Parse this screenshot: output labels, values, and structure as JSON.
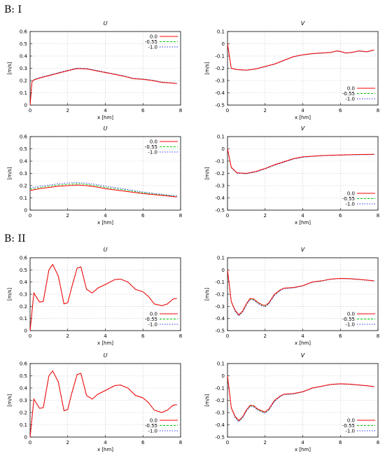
{
  "sections": [
    {
      "label": "B: I"
    },
    {
      "label": "B: II"
    }
  ],
  "legend_labels": [
    "0.0",
    "-0.55",
    "-1.0"
  ],
  "colors": {
    "s0": "#ff0000",
    "s1": "#00cc00",
    "s2": "#3333ff",
    "grid": "#b0b0b0",
    "axis": "#000000"
  },
  "chart_data": [
    {
      "type": "line",
      "section": "B: I",
      "title": "U",
      "xlabel": "x [hm]",
      "ylabel": "[m/s]",
      "xlim": [
        0,
        8
      ],
      "ylim": [
        0,
        0.6
      ],
      "xticks": [
        "0",
        "2",
        "4",
        "6",
        "8"
      ],
      "yticks": [
        "0",
        "0.1",
        "0.2",
        "0.3",
        "0.4",
        "0.5",
        "0.6"
      ],
      "grid": true,
      "legend": "top-right",
      "x": [
        0,
        0.1,
        0.2,
        0.5,
        1,
        1.5,
        2,
        2.5,
        3,
        3.5,
        4,
        4.5,
        5,
        5.5,
        6,
        6.5,
        7,
        7.5,
        7.8
      ],
      "series": [
        {
          "name": "0.0",
          "values": [
            0,
            0.19,
            0.205,
            0.22,
            0.24,
            0.26,
            0.28,
            0.298,
            0.295,
            0.28,
            0.265,
            0.25,
            0.235,
            0.215,
            0.21,
            0.2,
            0.185,
            0.18,
            0.175
          ]
        },
        {
          "name": "-0.55",
          "values": [
            0,
            0.19,
            0.207,
            0.222,
            0.242,
            0.262,
            0.282,
            0.3,
            0.297,
            0.282,
            0.267,
            0.252,
            0.237,
            0.217,
            0.212,
            0.202,
            0.187,
            0.181,
            0.176
          ]
        },
        {
          "name": "-1.0",
          "values": [
            0,
            0.19,
            0.208,
            0.224,
            0.244,
            0.264,
            0.284,
            0.302,
            0.299,
            0.284,
            0.268,
            0.253,
            0.238,
            0.218,
            0.213,
            0.203,
            0.188,
            0.182,
            0.177
          ]
        }
      ]
    },
    {
      "type": "line",
      "section": "B: I",
      "title": "V",
      "xlabel": "x [hm]",
      "ylabel": "[m/s]",
      "xlim": [
        0,
        8
      ],
      "ylim": [
        -0.5,
        0.1
      ],
      "xticks": [
        "0",
        "2",
        "4",
        "6",
        "8"
      ],
      "yticks": [
        "-0.5",
        "-0.4",
        "-0.3",
        "-0.2",
        "-0.1",
        "0",
        "0.1"
      ],
      "grid": true,
      "legend": "bottom-right",
      "x": [
        0,
        0.1,
        0.2,
        0.5,
        1,
        1.5,
        2,
        2.5,
        3,
        3.5,
        4,
        4.5,
        5,
        5.5,
        5.8,
        6,
        6.3,
        6.6,
        7,
        7.4,
        7.8
      ],
      "series": [
        {
          "name": "0.0",
          "values": [
            0,
            -0.1,
            -0.2,
            -0.21,
            -0.215,
            -0.205,
            -0.185,
            -0.165,
            -0.135,
            -0.105,
            -0.09,
            -0.08,
            -0.075,
            -0.07,
            -0.058,
            -0.062,
            -0.075,
            -0.07,
            -0.058,
            -0.065,
            -0.05
          ]
        },
        {
          "name": "-0.55",
          "values": [
            0,
            -0.1,
            -0.2,
            -0.211,
            -0.216,
            -0.206,
            -0.186,
            -0.166,
            -0.136,
            -0.106,
            -0.091,
            -0.081,
            -0.076,
            -0.071,
            -0.059,
            -0.063,
            -0.076,
            -0.071,
            -0.059,
            -0.066,
            -0.051
          ]
        },
        {
          "name": "-1.0",
          "values": [
            0,
            -0.1,
            -0.2,
            -0.212,
            -0.217,
            -0.207,
            -0.187,
            -0.167,
            -0.137,
            -0.107,
            -0.092,
            -0.082,
            -0.077,
            -0.072,
            -0.06,
            -0.064,
            -0.077,
            -0.072,
            -0.06,
            -0.067,
            -0.052
          ]
        }
      ]
    },
    {
      "type": "line",
      "section": "B: I",
      "title": "U",
      "xlabel": "x [hm]",
      "ylabel": "[m/s]",
      "xlim": [
        0,
        8
      ],
      "ylim": [
        0,
        0.6
      ],
      "xticks": [
        "0",
        "2",
        "4",
        "6",
        "8"
      ],
      "yticks": [
        "0",
        "0.1",
        "0.2",
        "0.3",
        "0.4",
        "0.5",
        "0.6"
      ],
      "grid": true,
      "legend": "top-right",
      "x": [
        0,
        0.5,
        1,
        1.5,
        2,
        2.5,
        3,
        3.5,
        4,
        4.5,
        5,
        5.5,
        6,
        6.5,
        7,
        7.5,
        7.8
      ],
      "series": [
        {
          "name": "0.0",
          "values": [
            0.16,
            0.175,
            0.185,
            0.195,
            0.2,
            0.205,
            0.2,
            0.19,
            0.175,
            0.165,
            0.155,
            0.145,
            0.135,
            0.128,
            0.12,
            0.112,
            0.108
          ]
        },
        {
          "name": "-0.55",
          "values": [
            0.17,
            0.185,
            0.195,
            0.205,
            0.21,
            0.215,
            0.21,
            0.2,
            0.185,
            0.175,
            0.165,
            0.153,
            0.142,
            0.133,
            0.125,
            0.117,
            0.113
          ]
        },
        {
          "name": "-1.0",
          "values": [
            0.18,
            0.195,
            0.205,
            0.215,
            0.222,
            0.225,
            0.22,
            0.21,
            0.195,
            0.185,
            0.173,
            0.16,
            0.148,
            0.138,
            0.13,
            0.12,
            0.116
          ]
        }
      ]
    },
    {
      "type": "line",
      "section": "B: I",
      "title": "V",
      "xlabel": "x [hm]",
      "ylabel": "[m/s]",
      "xlim": [
        0,
        8
      ],
      "ylim": [
        -0.5,
        0.1
      ],
      "xticks": [
        "0",
        "2",
        "4",
        "6",
        "8"
      ],
      "yticks": [
        "-0.5",
        "-0.4",
        "-0.3",
        "-0.2",
        "-0.1",
        "0",
        "0.1"
      ],
      "grid": true,
      "legend": "bottom-right",
      "x": [
        0,
        0.2,
        0.5,
        1,
        1.5,
        2,
        2.5,
        3,
        3.5,
        4,
        4.5,
        5,
        5.5,
        6,
        6.5,
        7,
        7.5,
        7.8
      ],
      "series": [
        {
          "name": "0.0",
          "values": [
            0,
            -0.15,
            -0.195,
            -0.2,
            -0.185,
            -0.16,
            -0.13,
            -0.105,
            -0.08,
            -0.065,
            -0.06,
            -0.055,
            -0.052,
            -0.05,
            -0.048,
            -0.046,
            -0.045,
            -0.044
          ]
        },
        {
          "name": "-0.55",
          "values": [
            0,
            -0.152,
            -0.197,
            -0.202,
            -0.187,
            -0.162,
            -0.132,
            -0.107,
            -0.082,
            -0.067,
            -0.061,
            -0.056,
            -0.053,
            -0.051,
            -0.049,
            -0.047,
            -0.046,
            -0.045
          ]
        },
        {
          "name": "-1.0",
          "values": [
            0,
            -0.154,
            -0.199,
            -0.204,
            -0.189,
            -0.164,
            -0.134,
            -0.109,
            -0.084,
            -0.069,
            -0.062,
            -0.057,
            -0.054,
            -0.052,
            -0.05,
            -0.048,
            -0.047,
            -0.046
          ]
        }
      ]
    },
    {
      "type": "line",
      "section": "B: II",
      "title": "U",
      "xlabel": "x [hm]",
      "ylabel": "[m/s]",
      "xlim": [
        0,
        8
      ],
      "ylim": [
        0,
        0.6
      ],
      "xticks": [
        "0",
        "2",
        "4",
        "6",
        "8"
      ],
      "yticks": [
        "0",
        "0.1",
        "0.2",
        "0.3",
        "0.4",
        "0.5",
        "0.6"
      ],
      "grid": true,
      "legend": "bottom-right",
      "x": [
        0,
        0.2,
        0.5,
        0.7,
        1,
        1.2,
        1.5,
        1.8,
        2,
        2.2,
        2.5,
        2.7,
        3,
        3.3,
        3.6,
        4,
        4.5,
        4.8,
        5.2,
        5.6,
        6,
        6.3,
        6.6,
        7,
        7.3,
        7.6,
        7.8
      ],
      "series": [
        {
          "name": "0.0",
          "values": [
            0,
            0.31,
            0.235,
            0.24,
            0.5,
            0.545,
            0.45,
            0.22,
            0.23,
            0.35,
            0.515,
            0.525,
            0.34,
            0.31,
            0.35,
            0.38,
            0.42,
            0.425,
            0.4,
            0.34,
            0.32,
            0.28,
            0.22,
            0.205,
            0.22,
            0.26,
            0.265
          ]
        },
        {
          "name": "-0.55",
          "values": [
            0,
            0.31,
            0.235,
            0.24,
            0.5,
            0.545,
            0.45,
            0.22,
            0.23,
            0.35,
            0.515,
            0.525,
            0.34,
            0.31,
            0.35,
            0.38,
            0.42,
            0.425,
            0.4,
            0.34,
            0.32,
            0.28,
            0.22,
            0.205,
            0.22,
            0.26,
            0.265
          ]
        },
        {
          "name": "-1.0",
          "values": [
            0,
            0.31,
            0.235,
            0.24,
            0.5,
            0.545,
            0.45,
            0.22,
            0.23,
            0.35,
            0.515,
            0.525,
            0.34,
            0.31,
            0.35,
            0.38,
            0.42,
            0.425,
            0.4,
            0.34,
            0.32,
            0.28,
            0.22,
            0.205,
            0.22,
            0.26,
            0.265
          ]
        }
      ]
    },
    {
      "type": "line",
      "section": "B: II",
      "title": "V",
      "xlabel": "x [hm]",
      "ylabel": "[m/s]",
      "xlim": [
        0,
        8
      ],
      "ylim": [
        -0.5,
        0.1
      ],
      "xticks": [
        "0",
        "2",
        "4",
        "6",
        "8"
      ],
      "yticks": [
        "-0.5",
        "-0.4",
        "-0.3",
        "-0.2",
        "-0.1",
        "0",
        "0.1"
      ],
      "grid": true,
      "legend": "bottom-right",
      "x": [
        0,
        0.2,
        0.4,
        0.6,
        0.8,
        1,
        1.2,
        1.4,
        1.6,
        1.8,
        2,
        2.2,
        2.5,
        2.8,
        3,
        3.5,
        4,
        4.5,
        5,
        5.5,
        6,
        6.5,
        7,
        7.5,
        7.8
      ],
      "series": [
        {
          "name": "0.0",
          "values": [
            0,
            -0.26,
            -0.33,
            -0.37,
            -0.34,
            -0.28,
            -0.235,
            -0.24,
            -0.265,
            -0.285,
            -0.295,
            -0.27,
            -0.2,
            -0.165,
            -0.15,
            -0.145,
            -0.13,
            -0.1,
            -0.09,
            -0.075,
            -0.07,
            -0.072,
            -0.078,
            -0.085,
            -0.09
          ]
        },
        {
          "name": "-0.55",
          "values": [
            0,
            -0.26,
            -0.335,
            -0.375,
            -0.345,
            -0.285,
            -0.24,
            -0.245,
            -0.27,
            -0.29,
            -0.3,
            -0.275,
            -0.205,
            -0.168,
            -0.152,
            -0.147,
            -0.131,
            -0.101,
            -0.091,
            -0.076,
            -0.071,
            -0.073,
            -0.079,
            -0.086,
            -0.091
          ]
        },
        {
          "name": "-1.0",
          "values": [
            0,
            -0.26,
            -0.34,
            -0.38,
            -0.35,
            -0.29,
            -0.245,
            -0.25,
            -0.275,
            -0.295,
            -0.305,
            -0.28,
            -0.21,
            -0.17,
            -0.154,
            -0.149,
            -0.132,
            -0.102,
            -0.092,
            -0.077,
            -0.072,
            -0.074,
            -0.08,
            -0.087,
            -0.092
          ]
        }
      ]
    },
    {
      "type": "line",
      "section": "B: II",
      "title": "U",
      "xlabel": "x [hm]",
      "ylabel": "[m/s]",
      "xlim": [
        0,
        8
      ],
      "ylim": [
        0,
        0.6
      ],
      "xticks": [
        "0",
        "2",
        "4",
        "6",
        "8"
      ],
      "yticks": [
        "0",
        "0.1",
        "0.2",
        "0.3",
        "0.4",
        "0.5",
        "0.6"
      ],
      "grid": true,
      "legend": "bottom-right",
      "x": [
        0,
        0.2,
        0.5,
        0.7,
        1,
        1.2,
        1.5,
        1.8,
        2,
        2.2,
        2.5,
        2.7,
        3,
        3.3,
        3.6,
        4,
        4.5,
        4.8,
        5.2,
        5.6,
        6,
        6.3,
        6.6,
        7,
        7.3,
        7.6,
        7.8
      ],
      "series": [
        {
          "name": "0.0",
          "values": [
            0,
            0.31,
            0.235,
            0.24,
            0.5,
            0.54,
            0.45,
            0.215,
            0.225,
            0.35,
            0.51,
            0.52,
            0.34,
            0.31,
            0.35,
            0.38,
            0.42,
            0.425,
            0.4,
            0.34,
            0.32,
            0.28,
            0.22,
            0.2,
            0.22,
            0.26,
            0.265
          ]
        },
        {
          "name": "-0.55",
          "values": [
            0,
            0.31,
            0.235,
            0.24,
            0.5,
            0.54,
            0.45,
            0.215,
            0.225,
            0.35,
            0.51,
            0.52,
            0.34,
            0.31,
            0.35,
            0.38,
            0.42,
            0.425,
            0.4,
            0.34,
            0.32,
            0.28,
            0.22,
            0.2,
            0.22,
            0.26,
            0.265
          ]
        },
        {
          "name": "-1.0",
          "values": [
            0,
            0.31,
            0.235,
            0.24,
            0.5,
            0.54,
            0.45,
            0.215,
            0.225,
            0.35,
            0.51,
            0.52,
            0.34,
            0.31,
            0.35,
            0.38,
            0.42,
            0.425,
            0.4,
            0.34,
            0.32,
            0.28,
            0.22,
            0.2,
            0.22,
            0.26,
            0.265
          ]
        }
      ]
    },
    {
      "type": "line",
      "section": "B: II",
      "title": "V",
      "xlabel": "x [hm]",
      "ylabel": "[m/s]",
      "xlim": [
        0,
        8
      ],
      "ylim": [
        -0.5,
        0.1
      ],
      "xticks": [
        "0",
        "2",
        "4",
        "6",
        "8"
      ],
      "yticks": [
        "-0.5",
        "-0.4",
        "-0.3",
        "-0.2",
        "-0.1",
        "0",
        "0.1"
      ],
      "grid": true,
      "legend": "bottom-right",
      "x": [
        0,
        0.2,
        0.4,
        0.6,
        0.8,
        1,
        1.2,
        1.4,
        1.6,
        1.8,
        2,
        2.2,
        2.5,
        2.8,
        3,
        3.5,
        4,
        4.5,
        5,
        5.5,
        6,
        6.5,
        7,
        7.5,
        7.8
      ],
      "series": [
        {
          "name": "0.0",
          "values": [
            0,
            -0.26,
            -0.33,
            -0.365,
            -0.335,
            -0.28,
            -0.24,
            -0.245,
            -0.27,
            -0.285,
            -0.295,
            -0.27,
            -0.2,
            -0.165,
            -0.15,
            -0.145,
            -0.13,
            -0.1,
            -0.085,
            -0.07,
            -0.065,
            -0.068,
            -0.075,
            -0.082,
            -0.088
          ]
        },
        {
          "name": "-0.55",
          "values": [
            0,
            -0.26,
            -0.335,
            -0.37,
            -0.34,
            -0.285,
            -0.245,
            -0.25,
            -0.275,
            -0.29,
            -0.3,
            -0.275,
            -0.205,
            -0.168,
            -0.152,
            -0.147,
            -0.131,
            -0.101,
            -0.086,
            -0.071,
            -0.066,
            -0.069,
            -0.076,
            -0.083,
            -0.089
          ]
        },
        {
          "name": "-1.0",
          "values": [
            0,
            -0.26,
            -0.34,
            -0.375,
            -0.345,
            -0.29,
            -0.25,
            -0.255,
            -0.28,
            -0.295,
            -0.305,
            -0.28,
            -0.21,
            -0.17,
            -0.154,
            -0.149,
            -0.132,
            -0.102,
            -0.087,
            -0.072,
            -0.067,
            -0.07,
            -0.077,
            -0.084,
            -0.09
          ]
        }
      ]
    }
  ]
}
